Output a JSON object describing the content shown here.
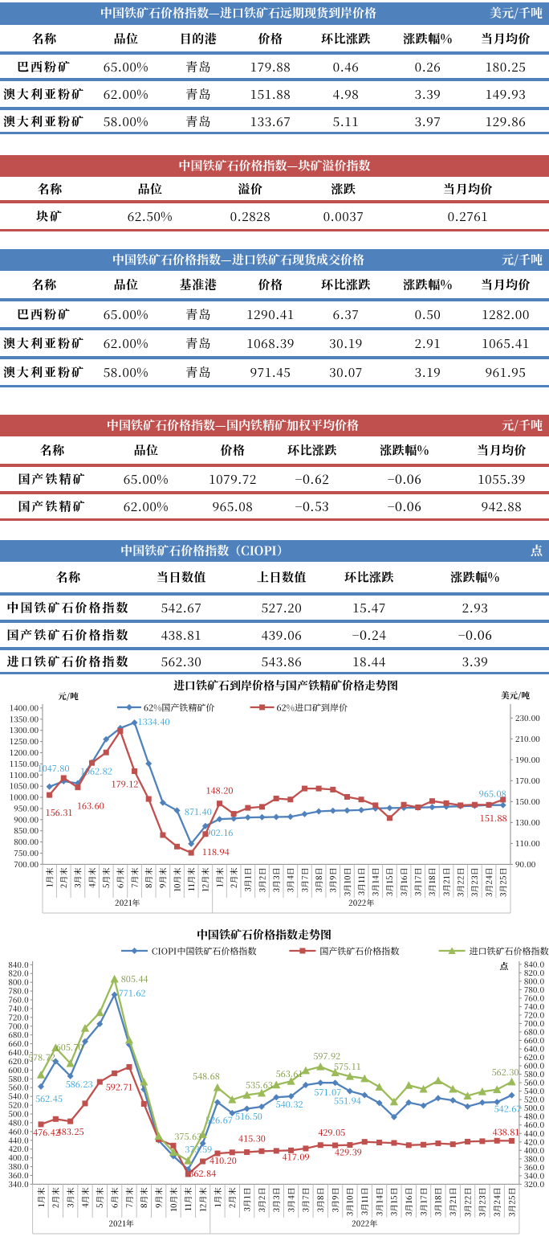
{
  "colors": {
    "table_blue": "#4F81BD",
    "table_red": "#C0504D",
    "series_blue": "#4F81BD",
    "series_red": "#C0504D",
    "series_green": "#9BBB59",
    "label_blue": "#2E9ED7",
    "label_red": "#C00000",
    "label_green": "#77933C",
    "axis_line": "#898989",
    "grid_gray": "#BFBFBF",
    "text": "#000000"
  },
  "tables": [
    {
      "theme": "blue",
      "title": "中国铁矿石价格指数—进口铁矿石远期现货到岸价格",
      "unit": "美元/千吨",
      "columns": [
        "名称",
        "品位",
        "目的港",
        "价格",
        "环比涨跌",
        "涨跌幅%",
        "当月均价"
      ],
      "rows": [
        [
          "巴西粉矿",
          "65.00%",
          "青岛",
          "179.88",
          "0.46",
          "0.26",
          "180.25"
        ],
        [
          "澳大利亚粉矿",
          "62.00%",
          "青岛",
          "151.88",
          "4.98",
          "3.39",
          "149.93"
        ],
        [
          "澳大利亚粉矿",
          "58.00%",
          "青岛",
          "133.67",
          "5.11",
          "3.97",
          "129.86"
        ]
      ]
    },
    {
      "theme": "red",
      "title": "中国铁矿石价格指数—块矿溢价指数",
      "unit": "",
      "columns": [
        "名称",
        "品位",
        "溢价",
        "涨跌",
        "当月均价"
      ],
      "rows": [
        [
          "块矿",
          "62.50%",
          "0.2828",
          "0.0037",
          "0.2761"
        ]
      ]
    },
    {
      "theme": "blue",
      "title": "中国铁矿石价格指数—进口铁矿石现货成交价格",
      "unit": "元/千吨",
      "columns": [
        "名称",
        "品位",
        "基准港",
        "价格",
        "环比涨跌",
        "涨跌幅%",
        "当月均价"
      ],
      "rows": [
        [
          "巴西粉矿",
          "65.00%",
          "青岛",
          "1290.41",
          "6.37",
          "0.50",
          "1282.00"
        ],
        [
          "澳大利亚粉矿",
          "62.00%",
          "青岛",
          "1068.39",
          "30.19",
          "2.91",
          "1065.41"
        ],
        [
          "澳大利亚粉矿",
          "58.00%",
          "青岛",
          "971.45",
          "30.07",
          "3.19",
          "961.95"
        ]
      ]
    },
    {
      "theme": "red",
      "title": "中国铁矿石价格指数—国内铁精矿加权平均价格",
      "unit": "元/千吨",
      "columns": [
        "名称",
        "品位",
        "价格",
        "环比涨跌",
        "涨跌幅%",
        "当月均价"
      ],
      "rows": [
        [
          "国产铁精矿",
          "65.00%",
          "1079.72",
          "−0.62",
          "−0.06",
          "1055.39"
        ],
        [
          "国产铁精矿",
          "62.00%",
          "965.08",
          "−0.53",
          "−0.06",
          "942.88"
        ]
      ]
    },
    {
      "theme": "blue",
      "title": "中国铁矿石价格指数（CIOPI）",
      "unit": "点",
      "columns": [
        "名称",
        "当日数值",
        "上日数值",
        "环比涨跌",
        "涨跌幅%"
      ],
      "rows": [
        [
          "中国铁矿石价格指数",
          "542.67",
          "527.20",
          "15.47",
          "2.93"
        ],
        [
          "国产铁矿石价格指数",
          "438.81",
          "439.06",
          "−0.24",
          "−0.06"
        ],
        [
          "进口铁矿石价格指数",
          "562.30",
          "543.86",
          "18.44",
          "3.39"
        ]
      ]
    }
  ],
  "chart_data": [
    {
      "type": "line",
      "title": "进口铁矿石到岸价格与国产铁精矿价格走势图",
      "unit_left": "元/吨",
      "unit_right": "美元/吨",
      "categories": [
        "1月末",
        "2月末",
        "3月末",
        "4月末",
        "5月末",
        "6月末",
        "7月末",
        "8月末",
        "9月末",
        "10月末",
        "11月末",
        "12月末",
        "1月末",
        "2月末",
        "3月1日",
        "3月2日",
        "3月3日",
        "3月4日",
        "3月7日",
        "3月8日",
        "3月9日",
        "3月10日",
        "3月11日",
        "3月14日",
        "3月15日",
        "3月16日",
        "3月17日",
        "3月18日",
        "3月21日",
        "3月22日",
        "3月23日",
        "3月24日",
        "3月25日"
      ],
      "group_labels": [
        "2021年",
        "2022年"
      ],
      "group_split": 12,
      "axis_left": {
        "min": 700,
        "max": 1400,
        "step": 50,
        "decimals": 2
      },
      "axis_right": {
        "min": 90,
        "max": 230,
        "step": 20,
        "decimals": 2
      },
      "legend_position": "top",
      "grid": false,
      "series": [
        {
          "name": "62%国产铁精矿价",
          "color": "#4F81BD",
          "marker": "diamond",
          "axis": "left",
          "label_color": "#2E9ED7",
          "values": [
            1047.8,
            1072,
            1062.82,
            1156,
            1260,
            1310,
            1334.4,
            1151,
            976,
            941,
            792,
            871.4,
            902.16,
            905,
            910,
            911,
            912,
            913,
            925,
            937,
            940,
            941,
            943,
            950,
            952,
            953,
            954,
            956,
            958,
            960,
            962,
            965.61,
            965.08
          ],
          "labels": [
            {
              "i": 0,
              "text": "1047.80",
              "dx": 5,
              "dy": -23
            },
            {
              "i": 2,
              "text": "1062.82",
              "dx": 23,
              "dy": -15
            },
            {
              "i": 6,
              "text": "1334.40",
              "dx": 24,
              "dy": -1
            },
            {
              "i": 11,
              "text": "871.40",
              "dx": -9,
              "dy": -18
            },
            {
              "i": 12,
              "text": "902.16",
              "dx": 0,
              "dy": 17
            },
            {
              "i": 32,
              "text": "965.08",
              "dx": -13,
              "dy": -14
            }
          ]
        },
        {
          "name": "62%进口矿到岸价",
          "color": "#C0504D",
          "marker": "square",
          "axis": "right",
          "label_color": "#C00000",
          "values": [
            156.31,
            172.6,
            163.6,
            187,
            197,
            217.5,
            179.12,
            152.5,
            118,
            107,
            101,
            118.94,
            148.2,
            138.3,
            144,
            145,
            153,
            152,
            162.5,
            162.5,
            161.5,
            154.5,
            152,
            146.5,
            134.3,
            147,
            144.5,
            150.5,
            148.5,
            146.5,
            147,
            146.9,
            151.88
          ],
          "labels": [
            {
              "i": 0,
              "text": "156.31",
              "dx": 12,
              "dy": 22
            },
            {
              "i": 2,
              "text": "163.60",
              "dx": 16,
              "dy": 23
            },
            {
              "i": 6,
              "text": "179.12",
              "dx": -12,
              "dy": 16
            },
            {
              "i": 11,
              "text": "118.94",
              "dx": 13,
              "dy": 22
            },
            {
              "i": 12,
              "text": "148.20",
              "dx": 0,
              "dy": -16
            },
            {
              "i": 32,
              "text": "151.88",
              "dx": -12,
              "dy": 23
            }
          ]
        }
      ]
    },
    {
      "type": "line",
      "title": "中国铁矿石价格指数走势图",
      "unit_left": "",
      "unit_right": "点",
      "categories": [
        "1月末",
        "2月末",
        "3月末",
        "4月末",
        "5月末",
        "6月末",
        "7月末",
        "8月末",
        "9月末",
        "10月末",
        "11月末",
        "12月末",
        "1月末",
        "2月末",
        "3月1日",
        "3月2日",
        "3月3日",
        "3月4日",
        "3月7日",
        "3月8日",
        "3月9日",
        "3月10日",
        "3月11日",
        "3月14日",
        "3月15日",
        "3月16日",
        "3月17日",
        "3月18日",
        "3月21日",
        "3月22日",
        "3月23日",
        "3月24日",
        "3月25日"
      ],
      "group_labels": [
        "2021年",
        "2022年"
      ],
      "group_split": 12,
      "axis_left": {
        "min": 340,
        "max": 840,
        "step": 20,
        "decimals": 1
      },
      "axis_right": {
        "min": 320,
        "max": 840,
        "step": 20,
        "decimals": 1
      },
      "legend_position": "top",
      "grid": false,
      "series": [
        {
          "name": "CIOPI中国铁矿石价格指数",
          "color": "#4F81BD",
          "marker": "diamond",
          "axis": "left",
          "label_color": "#2E9ED7",
          "values": [
            562.45,
            620,
            586.23,
            665,
            705,
            771.62,
            658,
            556,
            440,
            404,
            373.59,
            433,
            526.67,
            502,
            512,
            516.5,
            538,
            540.32,
            566,
            571.07,
            571,
            551.94,
            543,
            525,
            493,
            526,
            519,
            536,
            531,
            517,
            526,
            527.2,
            542.67
          ],
          "labels": [
            {
              "i": 0,
              "text": "562.45",
              "dx": 10,
              "dy": 15
            },
            {
              "i": 2,
              "text": "586.23",
              "dx": 11,
              "dy": 10
            },
            {
              "i": 5,
              "text": "771.62",
              "dx": 22,
              "dy": -2
            },
            {
              "i": 10,
              "text": "373.59",
              "dx": 13,
              "dy": -25
            },
            {
              "i": 12,
              "text": "526.67",
              "dx": 2,
              "dy": 22
            },
            {
              "i": 15,
              "text": "516.50",
              "dx": -16,
              "dy": 12
            },
            {
              "i": 17,
              "text": "540.32",
              "dx": -2,
              "dy": 10
            },
            {
              "i": 19,
              "text": "571.07",
              "dx": 9,
              "dy": 12
            },
            {
              "i": 21,
              "text": "551.94",
              "dx": -3,
              "dy": 12
            },
            {
              "i": 32,
              "text": "542.67",
              "dx": -5,
              "dy": 17
            }
          ]
        },
        {
          "name": "国产铁矿石价格指数",
          "color": "#C0504D",
          "marker": "square",
          "axis": "left",
          "label_color": "#C00000",
          "values": [
            476.42,
            488.5,
            483.25,
            524,
            573,
            592.71,
            607,
            523,
            442,
            428,
            362.84,
            392,
            410.2,
            412.5,
            413,
            415.3,
            416,
            417.09,
            421.5,
            429.05,
            428.5,
            429.39,
            436.5,
            435,
            434,
            429,
            430,
            433,
            431,
            437,
            438,
            439.06,
            438.81
          ],
          "labels": [
            {
              "i": 0,
              "text": "476.42",
              "dx": 7,
              "dy": 10
            },
            {
              "i": 2,
              "text": "483.25",
              "dx": 0,
              "dy": 13
            },
            {
              "i": 5,
              "text": "592.71",
              "dx": 6,
              "dy": 17
            },
            {
              "i": 10,
              "text": "362.84",
              "dx": 18,
              "dy": -1
            },
            {
              "i": 12,
              "text": "410.20",
              "dx": 7,
              "dy": 9
            },
            {
              "i": 15,
              "text": "415.30",
              "dx": -12,
              "dy": -16
            },
            {
              "i": 17,
              "text": "417.09",
              "dx": 6,
              "dy": 8
            },
            {
              "i": 19,
              "text": "429.05",
              "dx": 14,
              "dy": -16
            },
            {
              "i": 21,
              "text": "429.39",
              "dx": -2,
              "dy": 9
            },
            {
              "i": 32,
              "text": "438.81",
              "dx": -7,
              "dy": -11
            }
          ]
        },
        {
          "name": "进口铁矿石价格指数",
          "color": "#9BBB59",
          "marker": "triangle",
          "axis": "right",
          "label_color": "#77933C",
          "values": [
            578.72,
            643,
            605.7,
            689,
            726,
            805.44,
            661,
            562,
            434,
            396,
            375.63,
            438,
            548.68,
            520,
            531,
            535.63,
            555,
            563.61,
            589,
            597.92,
            584,
            575.11,
            570,
            550,
            515,
            554,
            545,
            565,
            545,
            529,
            539,
            543.86,
            562.3
          ],
          "labels": [
            {
              "i": 0,
              "text": "578.72",
              "dx": 1,
              "dy": -22
            },
            {
              "i": 2,
              "text": "605.70",
              "dx": -1,
              "dy": -20
            },
            {
              "i": 5,
              "text": "805.44",
              "dx": 25,
              "dy": 0
            },
            {
              "i": 10,
              "text": "375.63",
              "dx": 0,
              "dy": -30
            },
            {
              "i": 12,
              "text": "548.68",
              "dx": -14,
              "dy": -14
            },
            {
              "i": 15,
              "text": "535.63",
              "dx": -3,
              "dy": -10
            },
            {
              "i": 17,
              "text": "563.61",
              "dx": -2,
              "dy": -9
            },
            {
              "i": 19,
              "text": "597.92",
              "dx": 8,
              "dy": -13
            },
            {
              "i": 21,
              "text": "575.11",
              "dx": -3,
              "dy": -12
            },
            {
              "i": 32,
              "text": "562.30",
              "dx": -8,
              "dy": -12
            }
          ]
        }
      ]
    }
  ]
}
